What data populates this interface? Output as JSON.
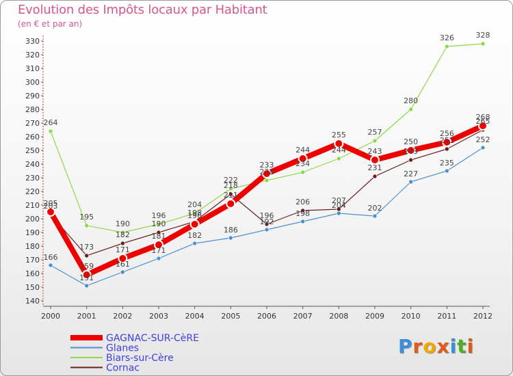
{
  "title": "Evolution des Impôts locaux par Habitant",
  "subtitle": "(en € et par an)",
  "logo": "Proxiti",
  "chart_data": {
    "type": "line",
    "title": "Evolution des Impôts locaux par Habitant",
    "subtitle": "(en € et par an)",
    "xlabel": "",
    "ylabel": "",
    "x": [
      "2000",
      "2001",
      "2002",
      "2003",
      "2004",
      "2005",
      "2006",
      "2007",
      "2008",
      "2009",
      "2010",
      "2011",
      "2012"
    ],
    "ylim": [
      140,
      330
    ],
    "ytick_step": 10,
    "grid": false,
    "legend_position": "bottom-left",
    "series": [
      {
        "name": "GAGNAC-SUR-CèRE",
        "color": "#ee0000",
        "values": [
          205,
          159,
          171,
          181,
          196,
          211,
          233,
          244,
          255,
          243,
          250,
          256,
          268
        ]
      },
      {
        "name": "Glanes",
        "color": "#4a8fd0",
        "values": [
          166,
          151,
          161,
          171,
          182,
          186,
          192,
          198,
          204,
          202,
          227,
          235,
          252
        ]
      },
      {
        "name": "Biars-sur-Cère",
        "color": "#8ed84a",
        "values": [
          264,
          195,
          190,
          196,
          204,
          222,
          228,
          234,
          244,
          257,
          280,
          326,
          328
        ]
      },
      {
        "name": "Cornac",
        "color": "#6b1e1e",
        "values": [
          203,
          173,
          182,
          190,
          198,
          218,
          196,
          206,
          207,
          231,
          243,
          251,
          265
        ]
      }
    ]
  }
}
